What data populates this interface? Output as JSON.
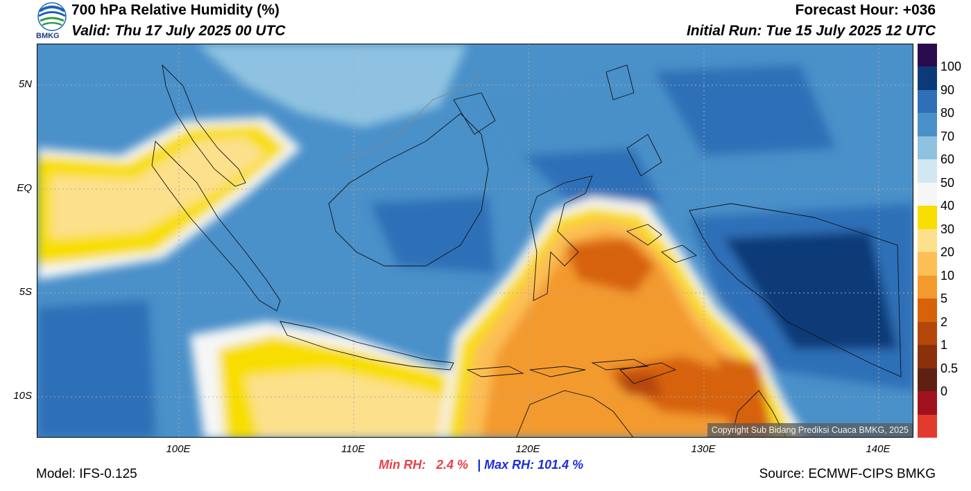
{
  "header": {
    "title": "700 hPa Relative Humidity (%)",
    "valid": "Valid: Thu 17 July 2025 00 UTC",
    "forecast_hour": "Forecast Hour: +036",
    "initial_run": "Initial Run: Tue 15 July 2025 12 UTC"
  },
  "logo": {
    "text": "BMKG",
    "icon": "bmkg-logo-icon"
  },
  "axes": {
    "lat_labels": [
      "5N",
      "EQ",
      "5S",
      "10S"
    ],
    "lon_labels": [
      "100E",
      "110E",
      "120E",
      "130E",
      "140E"
    ]
  },
  "colorbar": {
    "labels": [
      "100",
      "90",
      "80",
      "70",
      "60",
      "50",
      "40",
      "30",
      "20",
      "10",
      "5",
      "2",
      "1",
      "0.5",
      "0"
    ],
    "colors": [
      "#2a0c4e",
      "#0a3b78",
      "#2f6fb7",
      "#4a90c9",
      "#8fc2e0",
      "#d3e7f1",
      "#f6f6f6",
      "#f8de00",
      "#fde08c",
      "#fbbf55",
      "#f39a2e",
      "#d7620a",
      "#b5470b",
      "#8a300b",
      "#5e2010",
      "#a2121e",
      "#e23b2d"
    ]
  },
  "stats": {
    "min_label": "Min RH:",
    "min_value": "2.4 %",
    "sep": "|",
    "max_label": "Max RH: 101.4 %"
  },
  "footer": {
    "model": "Model: IFS-0.125",
    "source": "Source: ECMWF-CIPS BMKG",
    "copyright": "Copyright Sub Bidang Prediksi Cuaca BMKG, 2025"
  }
}
